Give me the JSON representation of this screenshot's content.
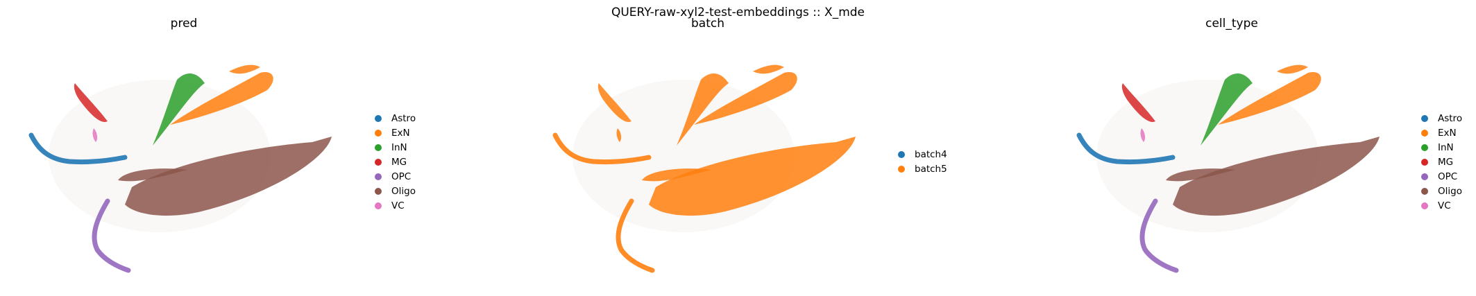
{
  "suptitle": "QUERY-raw-xyl2-test-embeddings :: X_mde",
  "chart_data": [
    {
      "type": "scatter",
      "title": "pred",
      "xlabel": "",
      "ylabel": "",
      "grid": false,
      "axes_visible": false,
      "legend_position": "right",
      "legend": [
        {
          "name": "Astro",
          "color": "#1f77b4"
        },
        {
          "name": "ExN",
          "color": "#ff7f0e"
        },
        {
          "name": "InN",
          "color": "#2ca02c"
        },
        {
          "name": "MG",
          "color": "#d62728"
        },
        {
          "name": "OPC",
          "color": "#9467bd"
        },
        {
          "name": "Oligo",
          "color": "#8c564b"
        },
        {
          "name": "VC",
          "color": "#e377c2"
        }
      ]
    },
    {
      "type": "scatter",
      "title": "batch",
      "xlabel": "",
      "ylabel": "",
      "grid": false,
      "axes_visible": false,
      "legend_position": "right",
      "legend": [
        {
          "name": "batch4",
          "color": "#1f77b4"
        },
        {
          "name": "batch5",
          "color": "#ff7f0e"
        }
      ]
    },
    {
      "type": "scatter",
      "title": "cell_type",
      "xlabel": "",
      "ylabel": "",
      "grid": false,
      "axes_visible": false,
      "legend_position": "right",
      "legend": [
        {
          "name": "Astro",
          "color": "#1f77b4"
        },
        {
          "name": "ExN",
          "color": "#ff7f0e"
        },
        {
          "name": "InN",
          "color": "#2ca02c"
        },
        {
          "name": "MG",
          "color": "#d62728"
        },
        {
          "name": "OPC",
          "color": "#9467bd"
        },
        {
          "name": "Oligo",
          "color": "#8c564b"
        },
        {
          "name": "VC",
          "color": "#e377c2"
        }
      ]
    }
  ]
}
